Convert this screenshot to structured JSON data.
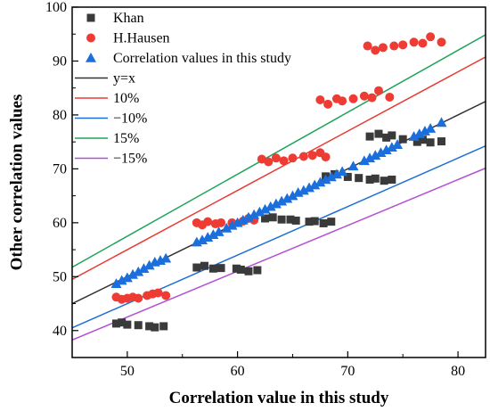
{
  "chart_data": {
    "type": "scatter",
    "xlabel": "Correlation value in this study",
    "ylabel": "Other correlation values",
    "xlim": [
      45,
      82.5
    ],
    "ylim": [
      35,
      100
    ],
    "xticks": [
      50,
      60,
      70,
      80
    ],
    "yticks": [
      40,
      50,
      60,
      70,
      80,
      90,
      100
    ],
    "tick_labels_x": [
      "50",
      "60",
      "70",
      "80"
    ],
    "tick_labels_y": [
      "40",
      "50",
      "60",
      "70",
      "80",
      "90",
      "100"
    ],
    "grid": false,
    "legend_position": "top-left",
    "series": [
      {
        "name": "Khan",
        "marker": "square",
        "color": "#3a3a3a",
        "points": [
          [
            49.0,
            41.3
          ],
          [
            49.5,
            41.5
          ],
          [
            50.0,
            41.1
          ],
          [
            51.0,
            41.0
          ],
          [
            52.0,
            40.8
          ],
          [
            52.5,
            40.6
          ],
          [
            53.3,
            40.8
          ],
          [
            56.3,
            51.7
          ],
          [
            57.0,
            52.0
          ],
          [
            57.8,
            51.5
          ],
          [
            58.5,
            51.6
          ],
          [
            59.9,
            51.5
          ],
          [
            60.3,
            51.3
          ],
          [
            61.0,
            51.0
          ],
          [
            61.8,
            51.2
          ],
          [
            62.5,
            60.8
          ],
          [
            63.2,
            61.0
          ],
          [
            64.0,
            60.6
          ],
          [
            64.8,
            60.6
          ],
          [
            65.3,
            60.4
          ],
          [
            66.5,
            60.2
          ],
          [
            67.0,
            60.3
          ],
          [
            67.8,
            59.9
          ],
          [
            68.5,
            60.2
          ],
          [
            68.0,
            68.6
          ],
          [
            68.8,
            69.0
          ],
          [
            70.0,
            68.5
          ],
          [
            71.0,
            68.3
          ],
          [
            72.0,
            68.0
          ],
          [
            72.5,
            68.2
          ],
          [
            73.3,
            67.8
          ],
          [
            74.0,
            68.0
          ],
          [
            72.0,
            76.0
          ],
          [
            72.8,
            76.5
          ],
          [
            73.5,
            75.8
          ],
          [
            74.0,
            76.2
          ],
          [
            75.0,
            75.5
          ],
          [
            76.3,
            75.0
          ],
          [
            76.8,
            75.4
          ],
          [
            77.5,
            74.9
          ],
          [
            78.5,
            75.1
          ]
        ]
      },
      {
        "name": "H.Hausen",
        "marker": "circle",
        "color": "#ee3b33",
        "points": [
          [
            49.0,
            46.2
          ],
          [
            49.5,
            45.8
          ],
          [
            50.0,
            46.0
          ],
          [
            50.5,
            46.2
          ],
          [
            51.0,
            46.0
          ],
          [
            51.8,
            46.5
          ],
          [
            52.3,
            46.8
          ],
          [
            52.8,
            47.0
          ],
          [
            53.5,
            46.5
          ],
          [
            56.3,
            60.0
          ],
          [
            56.8,
            59.6
          ],
          [
            57.3,
            60.2
          ],
          [
            58.0,
            59.8
          ],
          [
            58.5,
            60.0
          ],
          [
            59.5,
            60.0
          ],
          [
            60.5,
            60.3
          ],
          [
            61.0,
            60.8
          ],
          [
            61.5,
            60.5
          ],
          [
            62.2,
            71.8
          ],
          [
            62.8,
            71.3
          ],
          [
            63.5,
            72.0
          ],
          [
            64.2,
            71.5
          ],
          [
            65.0,
            72.0
          ],
          [
            66.0,
            72.3
          ],
          [
            66.8,
            72.5
          ],
          [
            67.5,
            73.0
          ],
          [
            68.0,
            72.2
          ],
          [
            67.5,
            82.8
          ],
          [
            68.2,
            82.0
          ],
          [
            69.0,
            83.0
          ],
          [
            69.5,
            82.6
          ],
          [
            70.5,
            83.0
          ],
          [
            71.5,
            83.5
          ],
          [
            72.2,
            83.2
          ],
          [
            72.8,
            84.5
          ],
          [
            73.8,
            83.3
          ],
          [
            71.8,
            92.8
          ],
          [
            72.5,
            92.0
          ],
          [
            73.2,
            92.5
          ],
          [
            74.2,
            92.8
          ],
          [
            75.0,
            93.0
          ],
          [
            76.0,
            93.5
          ],
          [
            76.8,
            93.3
          ],
          [
            77.5,
            94.5
          ],
          [
            78.5,
            93.5
          ]
        ]
      },
      {
        "name": "Correlation values in this study",
        "marker": "triangle",
        "color": "#1a6fdc",
        "points": [
          [
            49.0,
            48.7
          ],
          [
            49.5,
            49.3
          ],
          [
            50.0,
            49.8
          ],
          [
            50.5,
            50.4
          ],
          [
            51.0,
            50.9
          ],
          [
            51.5,
            51.5
          ],
          [
            52.0,
            52.1
          ],
          [
            52.5,
            52.7
          ],
          [
            53.0,
            53.0
          ],
          [
            53.5,
            53.4
          ],
          [
            56.3,
            56.4
          ],
          [
            56.8,
            56.8
          ],
          [
            57.3,
            57.3
          ],
          [
            57.8,
            57.8
          ],
          [
            58.3,
            58.3
          ],
          [
            59.0,
            59.0
          ],
          [
            59.5,
            59.5
          ],
          [
            60.0,
            60.0
          ],
          [
            60.5,
            60.5
          ],
          [
            61.0,
            61.0
          ],
          [
            61.5,
            61.5
          ],
          [
            62.0,
            62.0
          ],
          [
            62.5,
            62.5
          ],
          [
            63.0,
            63.0
          ],
          [
            63.5,
            63.5
          ],
          [
            64.0,
            64.0
          ],
          [
            64.5,
            64.5
          ],
          [
            65.0,
            65.0
          ],
          [
            65.5,
            65.6
          ],
          [
            66.0,
            66.0
          ],
          [
            66.5,
            66.5
          ],
          [
            67.0,
            67.0
          ],
          [
            67.5,
            67.5
          ],
          [
            68.0,
            68.0
          ],
          [
            68.5,
            68.5
          ],
          [
            69.0,
            69.0
          ],
          [
            69.5,
            69.5
          ],
          [
            70.5,
            70.5
          ],
          [
            71.5,
            71.5
          ],
          [
            72.0,
            72.0
          ],
          [
            72.5,
            72.5
          ],
          [
            73.0,
            73.0
          ],
          [
            73.5,
            73.5
          ],
          [
            74.0,
            74.0
          ],
          [
            74.5,
            74.5
          ],
          [
            76.0,
            76.0
          ],
          [
            76.5,
            76.5
          ],
          [
            77.0,
            77.0
          ],
          [
            77.5,
            77.5
          ],
          [
            78.5,
            78.6
          ]
        ]
      }
    ],
    "lines": [
      {
        "name": "y=x",
        "factor": 1.0,
        "color": "#333333"
      },
      {
        "name": "10%",
        "factor": 1.1,
        "color": "#e83a33"
      },
      {
        "name": "−10%",
        "factor": 0.9,
        "color": "#1f6fd6"
      },
      {
        "name": "15%",
        "factor": 1.15,
        "color": "#1ea35a"
      },
      {
        "name": "−15%",
        "factor": 0.85,
        "color": "#b44fd4"
      }
    ]
  }
}
